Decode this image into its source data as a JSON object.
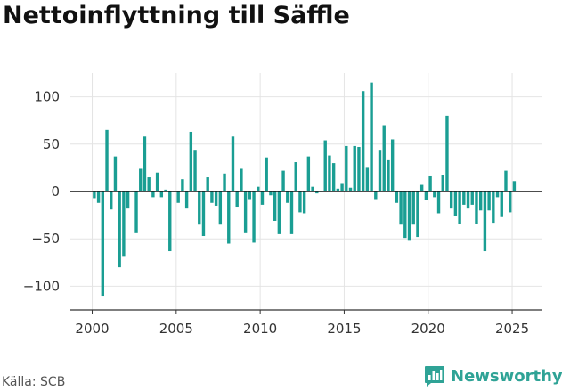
{
  "title": "Nettoinflyttning till Säffle",
  "source": "Källa: SCB",
  "brand": "Newsworthy",
  "colors": {
    "bar": "#1a9e93",
    "brand": "#2fa396",
    "grid": "#e4e4e4",
    "zero": "#111111"
  },
  "chart_data": {
    "type": "bar",
    "title": "Nettoinflyttning till Säffle",
    "xlabel": "",
    "ylabel": "",
    "frequency": "quarterly",
    "x_start": 2000,
    "xlim": [
      1998.7,
      2026.8
    ],
    "ylim": [
      -125,
      125
    ],
    "yticks": [
      -100,
      -50,
      0,
      50,
      100
    ],
    "ytick_labels": [
      "−100",
      "−50",
      "0",
      "50",
      "100"
    ],
    "xticks": [
      2000,
      2005,
      2010,
      2015,
      2020,
      2025
    ],
    "xtick_labels": [
      "2000",
      "2005",
      "2010",
      "2015",
      "2020",
      "2025"
    ],
    "grid": true,
    "values": [
      -7,
      -12,
      -110,
      65,
      -19,
      37,
      -80,
      -68,
      -18,
      0,
      -44,
      24,
      58,
      15,
      -6,
      20,
      -6,
      2,
      -63,
      0,
      -12,
      13,
      -18,
      63,
      44,
      -35,
      -47,
      15,
      -12,
      -15,
      -35,
      19,
      -55,
      58,
      -16,
      24,
      -44,
      -8,
      -54,
      5,
      -14,
      36,
      -4,
      -31,
      -45,
      22,
      -12,
      -45,
      31,
      -22,
      -23,
      37,
      5,
      -2,
      0,
      54,
      38,
      30,
      3,
      8,
      48,
      4,
      48,
      47,
      106,
      25,
      115,
      -8,
      44,
      70,
      33,
      55,
      -12,
      -35,
      -49,
      -52,
      -35,
      -48,
      7,
      -9,
      16,
      -6,
      -23,
      17,
      80,
      -18,
      -26,
      -34,
      -14,
      -18,
      -14,
      -34,
      -20,
      -63,
      -20,
      -33,
      -6,
      -27,
      22,
      -22,
      11
    ]
  }
}
